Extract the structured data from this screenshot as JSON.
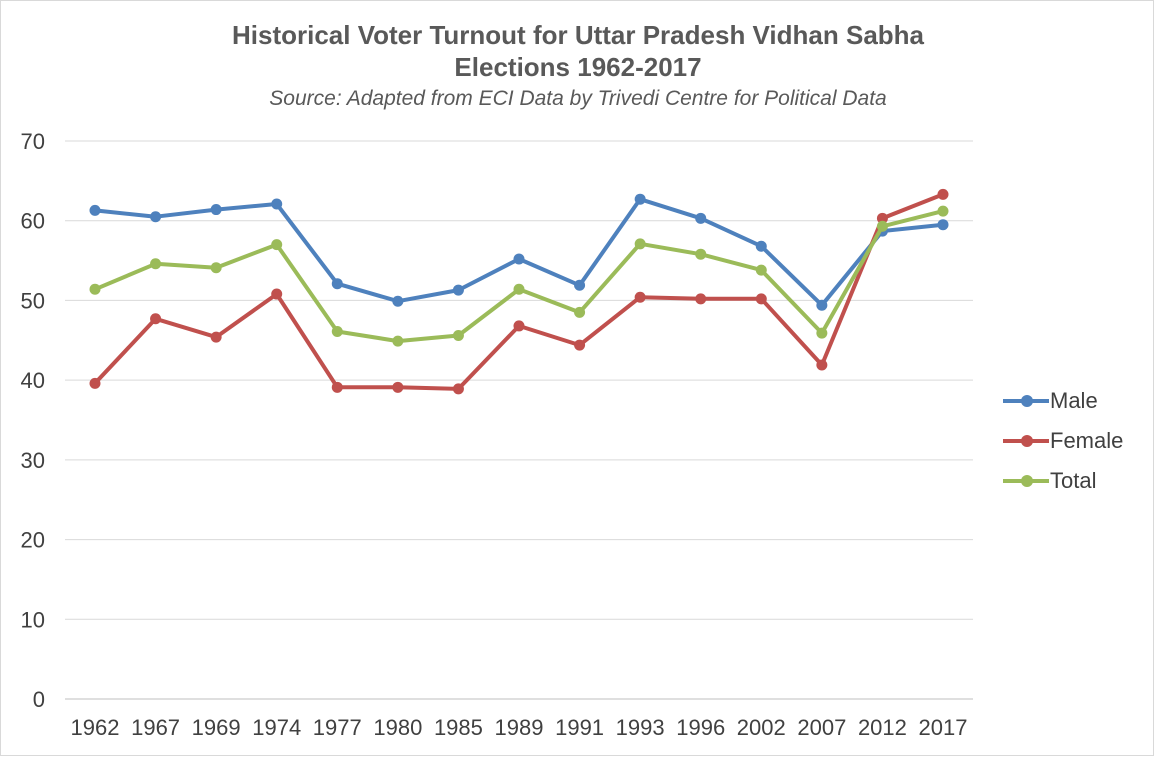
{
  "chart_data": {
    "type": "line",
    "title_line1": "Historical Voter Turnout for Uttar Pradesh Vidhan Sabha",
    "title_line2": "Elections 1962-2017",
    "subtitle": "Source: Adapted from ECI Data by Trivedi Centre for Political Data",
    "xlabel": "",
    "ylabel": "",
    "categories": [
      "1962",
      "1967",
      "1969",
      "1974",
      "1977",
      "1980",
      "1985",
      "1989",
      "1991",
      "1993",
      "1996",
      "2002",
      "2007",
      "2012",
      "2017"
    ],
    "ylim": [
      0,
      70
    ],
    "yticks": [
      0,
      10,
      20,
      30,
      40,
      50,
      60,
      70
    ],
    "grid": true,
    "legend_position": "right",
    "series": [
      {
        "name": "Male",
        "color": "#4e81bd",
        "values": [
          61.3,
          60.5,
          61.4,
          62.1,
          52.1,
          49.9,
          51.3,
          55.2,
          51.9,
          62.7,
          60.3,
          56.8,
          49.4,
          58.7,
          59.5
        ]
      },
      {
        "name": "Female",
        "color": "#c0504d",
        "values": [
          39.6,
          47.7,
          45.4,
          50.8,
          39.1,
          39.1,
          38.9,
          46.8,
          44.4,
          50.4,
          50.2,
          50.2,
          41.9,
          60.3,
          63.3
        ]
      },
      {
        "name": "Total",
        "color": "#9bbb59",
        "values": [
          51.4,
          54.6,
          54.1,
          57.0,
          46.1,
          44.9,
          45.6,
          51.4,
          48.5,
          57.1,
          55.8,
          53.8,
          45.9,
          59.3,
          61.2
        ]
      }
    ]
  }
}
